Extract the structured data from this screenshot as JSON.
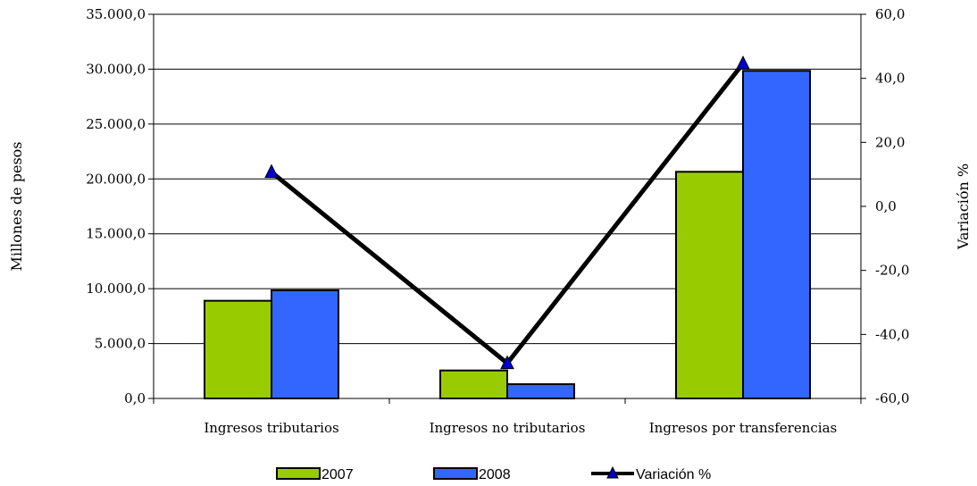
{
  "chart_data": {
    "type": "bar",
    "categories": [
      "Ingresos tributarios",
      "Ingresos no tributarios",
      "Ingresos por transferencias"
    ],
    "series": [
      {
        "name": "2007",
        "type": "bar",
        "axis": "left",
        "color": "#99CC00",
        "values": [
          8900,
          2550,
          20650
        ]
      },
      {
        "name": "2008",
        "type": "bar",
        "axis": "right_none",
        "color": "#3366FF",
        "values": [
          9850,
          1300,
          29850
        ]
      },
      {
        "name": "Variación %",
        "type": "line",
        "axis": "right",
        "color": "#000000",
        "marker_color": "#0000CC",
        "values": [
          10.7,
          -49.0,
          44.6
        ]
      }
    ],
    "ylabel": "Millones de pesos",
    "y2label": "Variación %",
    "ylim": [
      0,
      35000
    ],
    "y2lim": [
      -60,
      60
    ],
    "yticks": [
      "0,0",
      "5.000,0",
      "10.000,0",
      "15.000,0",
      "20.000,0",
      "25.000,0",
      "30.000,0",
      "35.000,0"
    ],
    "y2ticks": [
      "-60,0",
      "-40,0",
      "-20,0",
      "0,0",
      "20,0",
      "40,0",
      "60,0"
    ],
    "grid": true,
    "legend": "bottom"
  }
}
